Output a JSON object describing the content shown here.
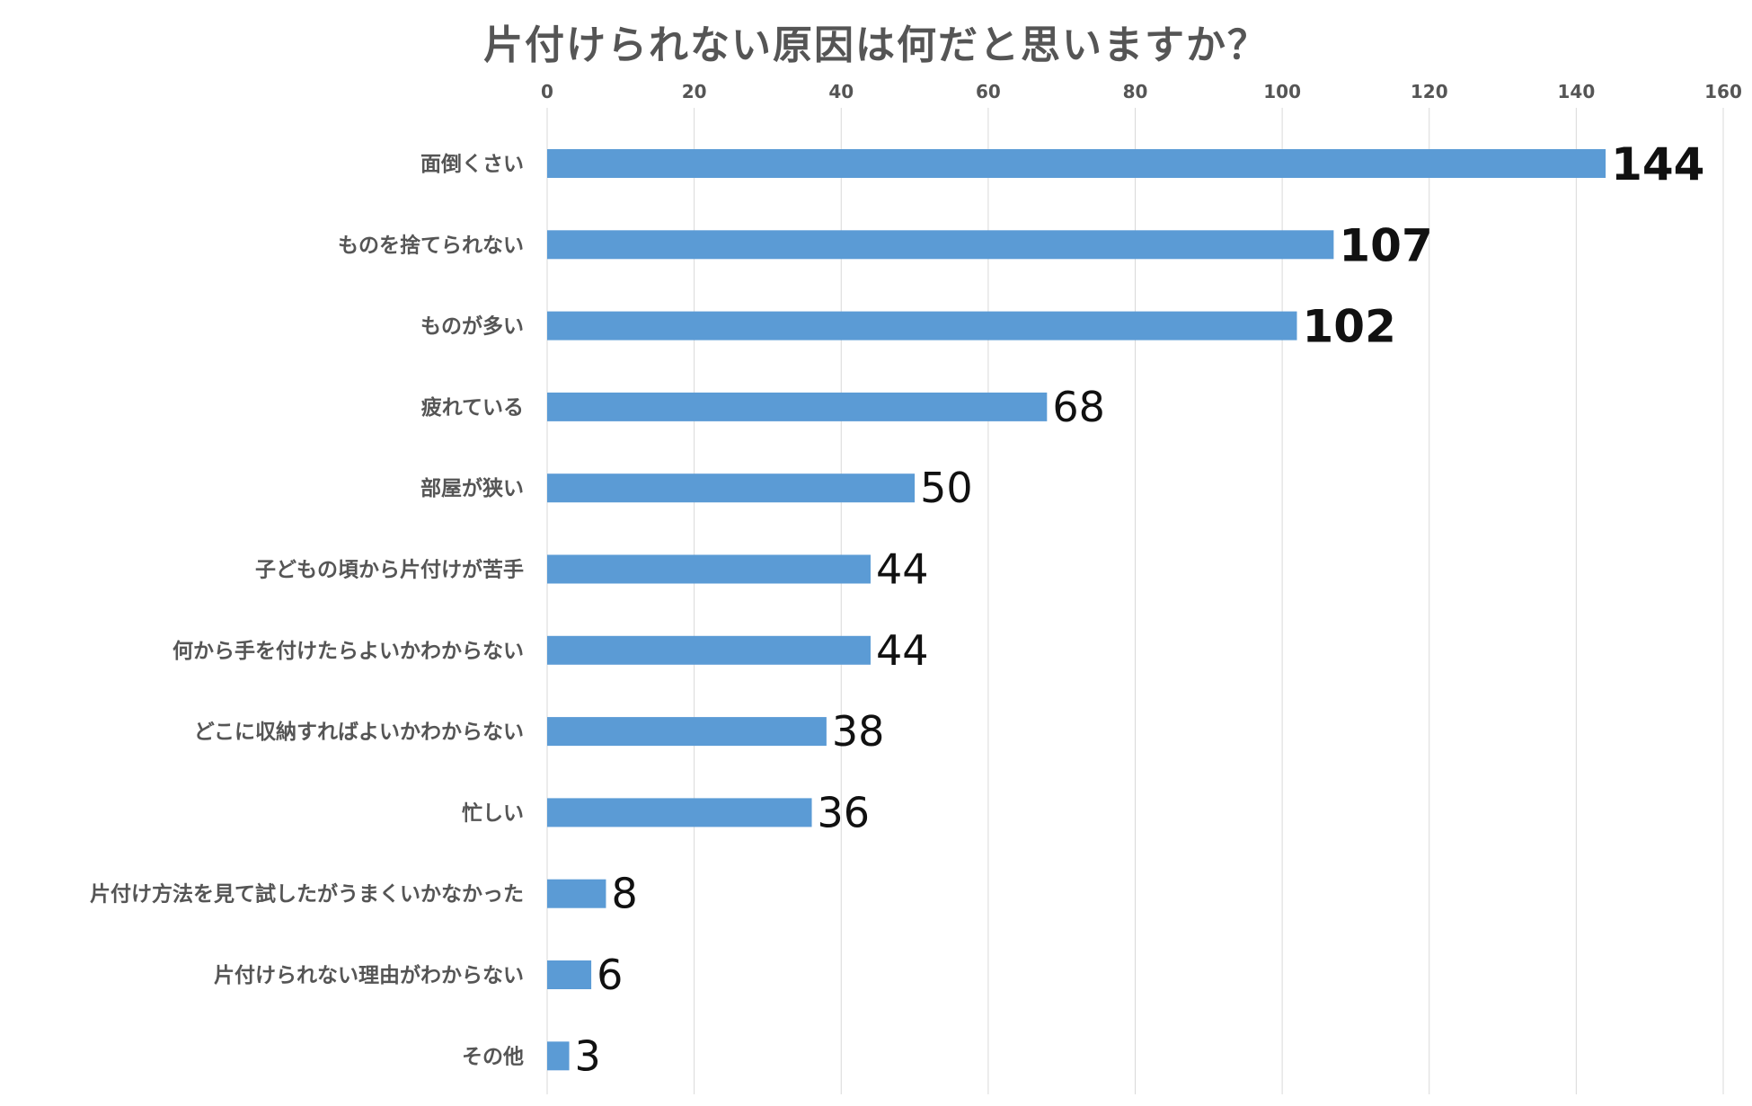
{
  "chart_data": {
    "type": "bar",
    "orientation": "horizontal",
    "title": "片付けられない原因は何だと思いますか？",
    "xlabel": "",
    "ylabel": "",
    "xlim": [
      0,
      160
    ],
    "x_ticks": [
      0,
      20,
      40,
      60,
      80,
      100,
      120,
      140,
      160
    ],
    "x_tick_labels": [
      "0",
      "20",
      "40",
      "60",
      "80",
      "100",
      "120",
      "140",
      "160"
    ],
    "x_axis_position": "top",
    "grid": true,
    "legend": "none",
    "bar_color": "#5b9bd5",
    "categories": [
      "面倒くさい",
      "ものを捨てられない",
      "ものが多い",
      "疲れている",
      "部屋が狭い",
      "子どもの頃から片付けが苦手",
      "何から手を付けたらよいかわからない",
      "どこに収納すればよいかわからない",
      "忙しい",
      "片付け方法を見て試したがうまくいかなかった",
      "片付けられない理由がわからない",
      "その他"
    ],
    "values": [
      144,
      107,
      102,
      68,
      50,
      44,
      44,
      38,
      36,
      8,
      6,
      3
    ],
    "emphasized_labels": [
      true,
      true,
      true,
      false,
      false,
      false,
      false,
      false,
      false,
      false,
      false,
      false
    ]
  }
}
